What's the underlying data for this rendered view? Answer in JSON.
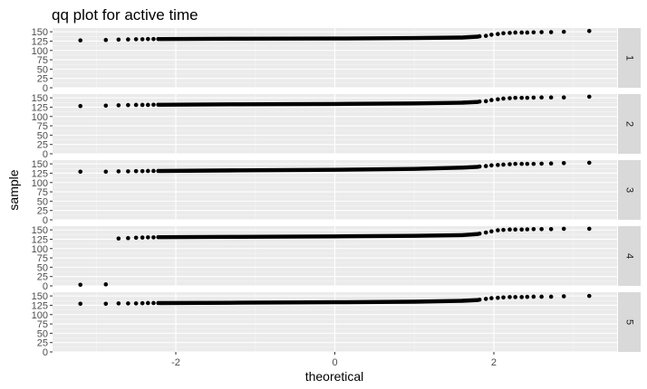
{
  "chart_data": {
    "type": "scatter",
    "title": "qq plot for active time",
    "xlabel": "theoretical",
    "ylabel": "sample",
    "xlim": [
      -3.55,
      3.55
    ],
    "ylim": [
      0,
      160
    ],
    "x_ticks": [
      -2,
      0,
      2
    ],
    "y_ticks": [
      0,
      25,
      50,
      75,
      100,
      125,
      150
    ],
    "grid": true,
    "panels": [
      {
        "label": "1",
        "points": [
          [
            -3.2,
            127
          ],
          [
            -2.88,
            128
          ],
          [
            -2.72,
            129
          ],
          [
            -2.6,
            129.5
          ],
          [
            -2.5,
            130
          ],
          [
            -2.42,
            130
          ],
          [
            -2.35,
            130.5
          ],
          [
            -2.28,
            130.5
          ],
          [
            -2.22,
            130.5
          ],
          [
            1.82,
            138
          ],
          [
            1.9,
            139
          ],
          [
            1.97,
            142
          ],
          [
            2.05,
            144
          ],
          [
            2.12,
            146
          ],
          [
            2.2,
            147
          ],
          [
            2.27,
            148
          ],
          [
            2.35,
            148
          ],
          [
            2.42,
            148
          ],
          [
            2.5,
            148.5
          ],
          [
            2.6,
            149
          ],
          [
            2.72,
            149
          ],
          [
            2.88,
            150
          ],
          [
            3.2,
            152
          ]
        ],
        "trend": [
          [
            -2.2,
            130.5
          ],
          [
            -1.2,
            131.5
          ],
          [
            0,
            132
          ],
          [
            1.0,
            133
          ],
          [
            1.6,
            134.5
          ],
          [
            1.8,
            137
          ]
        ]
      },
      {
        "label": "2",
        "points": [
          [
            -3.2,
            128
          ],
          [
            -2.88,
            129
          ],
          [
            -2.72,
            130
          ],
          [
            -2.6,
            130.5
          ],
          [
            -2.5,
            131
          ],
          [
            -2.42,
            131
          ],
          [
            -2.35,
            131
          ],
          [
            -2.28,
            131.5
          ],
          [
            -2.22,
            131.5
          ],
          [
            1.82,
            140
          ],
          [
            1.9,
            141
          ],
          [
            1.97,
            144
          ],
          [
            2.05,
            146
          ],
          [
            2.12,
            148
          ],
          [
            2.2,
            149
          ],
          [
            2.27,
            150
          ],
          [
            2.35,
            150
          ],
          [
            2.42,
            150
          ],
          [
            2.5,
            150.5
          ],
          [
            2.6,
            151
          ],
          [
            2.72,
            151
          ],
          [
            2.88,
            151
          ],
          [
            3.2,
            153
          ]
        ],
        "trend": [
          [
            -2.2,
            131.5
          ],
          [
            -1.2,
            132.5
          ],
          [
            0,
            133.5
          ],
          [
            1.0,
            135
          ],
          [
            1.6,
            137
          ],
          [
            1.8,
            139
          ]
        ]
      },
      {
        "label": "3",
        "points": [
          [
            -3.2,
            129
          ],
          [
            -2.88,
            129
          ],
          [
            -2.72,
            130
          ],
          [
            -2.6,
            130
          ],
          [
            -2.5,
            130.5
          ],
          [
            -2.42,
            130.5
          ],
          [
            -2.35,
            131
          ],
          [
            -2.28,
            131
          ],
          [
            -2.22,
            131
          ],
          [
            1.82,
            143
          ],
          [
            1.9,
            144
          ],
          [
            1.97,
            146
          ],
          [
            2.05,
            147
          ],
          [
            2.12,
            148
          ],
          [
            2.2,
            149
          ],
          [
            2.27,
            150
          ],
          [
            2.35,
            150
          ],
          [
            2.42,
            150
          ],
          [
            2.5,
            150
          ],
          [
            2.6,
            150.5
          ],
          [
            2.72,
            151
          ],
          [
            2.88,
            152
          ],
          [
            3.2,
            153
          ]
        ],
        "trend": [
          [
            -2.2,
            131
          ],
          [
            -1.2,
            132.5
          ],
          [
            0,
            134
          ],
          [
            1.0,
            136.5
          ],
          [
            1.6,
            140
          ],
          [
            1.8,
            142
          ]
        ]
      },
      {
        "label": "4",
        "points": [
          [
            -3.2,
            3
          ],
          [
            -2.88,
            4
          ],
          [
            -2.72,
            127
          ],
          [
            -2.6,
            128
          ],
          [
            -2.5,
            129
          ],
          [
            -2.42,
            129.5
          ],
          [
            -2.35,
            130
          ],
          [
            -2.28,
            130
          ],
          [
            -2.22,
            130.5
          ],
          [
            1.82,
            140
          ],
          [
            1.9,
            143
          ],
          [
            1.97,
            146
          ],
          [
            2.05,
            149
          ],
          [
            2.12,
            150
          ],
          [
            2.2,
            151
          ],
          [
            2.27,
            151
          ],
          [
            2.35,
            151
          ],
          [
            2.42,
            151.5
          ],
          [
            2.5,
            152
          ],
          [
            2.6,
            152
          ],
          [
            2.72,
            152
          ],
          [
            2.88,
            153
          ],
          [
            3.2,
            153
          ]
        ],
        "trend": [
          [
            -2.2,
            130.5
          ],
          [
            -1.2,
            131.5
          ],
          [
            0,
            132.5
          ],
          [
            1.0,
            134
          ],
          [
            1.6,
            136
          ],
          [
            1.8,
            139
          ]
        ]
      },
      {
        "label": "5",
        "points": [
          [
            -3.2,
            129
          ],
          [
            -2.88,
            129
          ],
          [
            -2.72,
            130
          ],
          [
            -2.6,
            130
          ],
          [
            -2.5,
            130
          ],
          [
            -2.42,
            130.5
          ],
          [
            -2.35,
            131
          ],
          [
            -2.28,
            131
          ],
          [
            -2.22,
            131
          ],
          [
            1.82,
            140
          ],
          [
            1.9,
            142
          ],
          [
            1.97,
            144
          ],
          [
            2.05,
            145
          ],
          [
            2.12,
            146
          ],
          [
            2.2,
            147
          ],
          [
            2.27,
            147
          ],
          [
            2.35,
            147
          ],
          [
            2.42,
            147.5
          ],
          [
            2.5,
            148
          ],
          [
            2.6,
            148
          ],
          [
            2.72,
            148
          ],
          [
            2.88,
            149
          ],
          [
            3.2,
            150
          ]
        ],
        "trend": [
          [
            -2.2,
            131
          ],
          [
            -1.2,
            132
          ],
          [
            0,
            133
          ],
          [
            1.0,
            134.5
          ],
          [
            1.6,
            137
          ],
          [
            1.8,
            139
          ]
        ]
      }
    ]
  },
  "colors": {
    "panel_bg": "#ebebeb",
    "grid_major": "#ffffff",
    "grid_minor": "#f5f5f5",
    "strip_bg": "#d9d9d9",
    "point": "#000000",
    "tick": "#333333"
  }
}
